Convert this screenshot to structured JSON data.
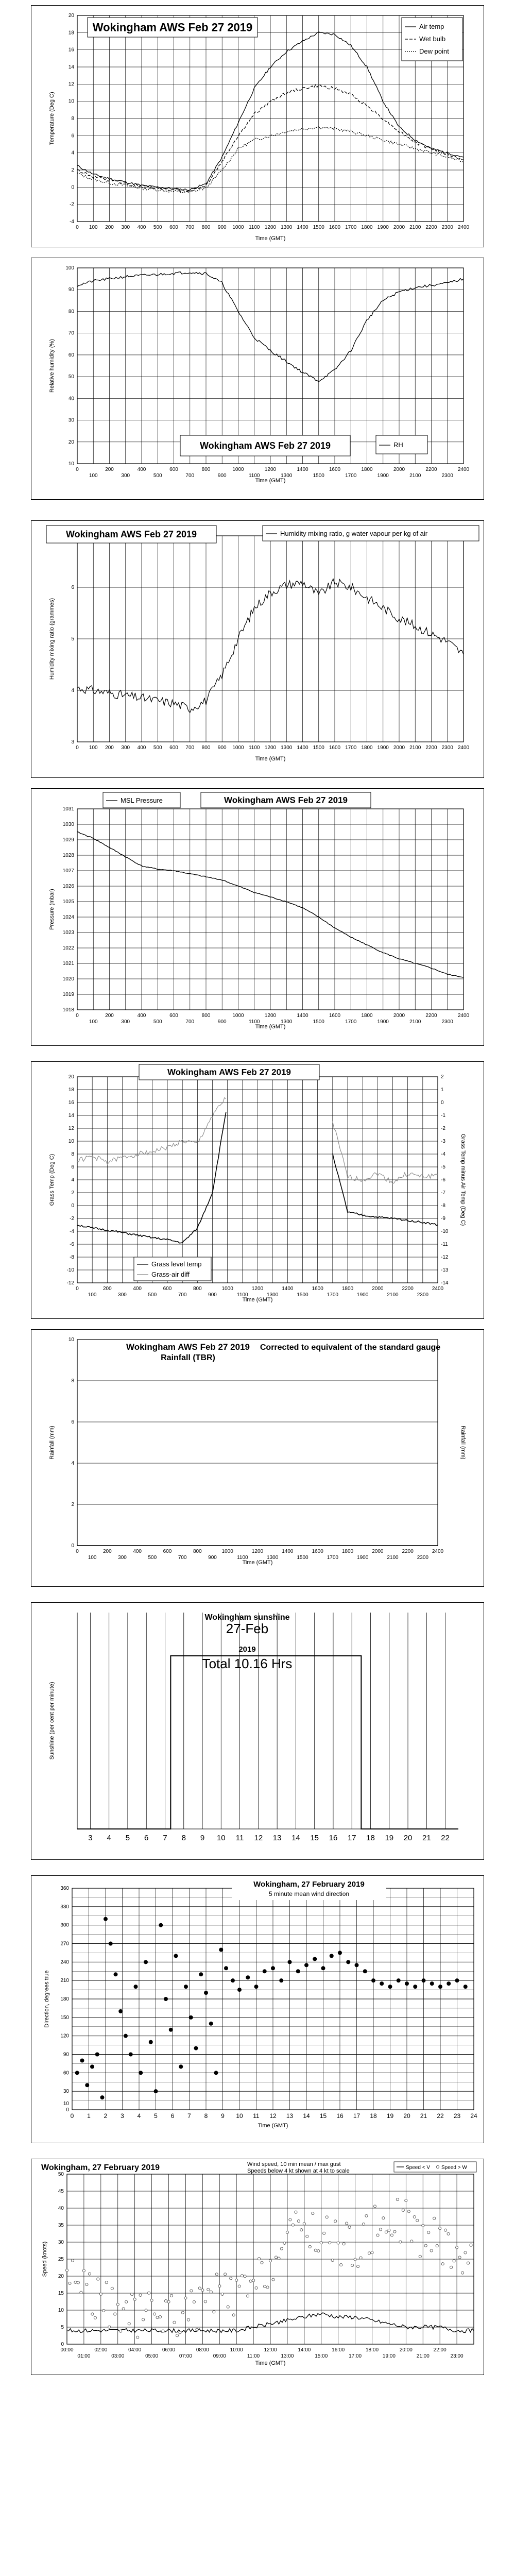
{
  "chart_data": [
    {
      "type": "line",
      "title": "Wokingham AWS Feb 27 2019",
      "ylabel": "Temperature (Deg C)",
      "xlabel": "Time (GMT)",
      "ylim": [
        -4,
        20
      ],
      "x": [
        0,
        100,
        200,
        300,
        400,
        500,
        600,
        700,
        800,
        900,
        1000,
        1100,
        1200,
        1300,
        1400,
        1500,
        1600,
        1700,
        1800,
        1900,
        2000,
        2100,
        2200,
        2300,
        2400
      ],
      "series": [
        {
          "name": "Air temp",
          "values": [
            2.5,
            1.5,
            1.0,
            0.6,
            0.2,
            0.0,
            -0.2,
            -0.3,
            0.4,
            3.5,
            7.5,
            11.5,
            14.0,
            15.8,
            17.0,
            18.0,
            17.8,
            16.5,
            14.0,
            10.0,
            7.0,
            5.5,
            4.5,
            4.0,
            3.5
          ]
        },
        {
          "name": "Wet bulb",
          "values": [
            2.0,
            1.2,
            0.8,
            0.4,
            0.1,
            -0.1,
            -0.3,
            -0.4,
            0.2,
            3.0,
            6.0,
            8.5,
            10.0,
            11.0,
            11.5,
            11.8,
            11.5,
            10.8,
            9.5,
            8.0,
            6.5,
            5.2,
            4.5,
            3.8,
            3.2
          ]
        },
        {
          "name": "Dew point",
          "values": [
            1.6,
            0.9,
            0.5,
            0.2,
            -0.1,
            -0.3,
            -0.5,
            -0.6,
            -0.1,
            2.0,
            4.5,
            5.5,
            6.0,
            6.5,
            6.8,
            7.0,
            6.8,
            6.5,
            6.0,
            5.5,
            5.0,
            4.5,
            4.0,
            3.5,
            3.0
          ]
        }
      ],
      "yticks": [
        "-4",
        "-2",
        "0",
        "2",
        "4",
        "6",
        "8",
        "10",
        "12",
        "14",
        "16",
        "18",
        "20"
      ],
      "xticks_top": [
        "0",
        "100",
        "200",
        "300",
        "400",
        "500",
        "600",
        "700",
        "800",
        "900",
        "1000",
        "1100",
        "1200",
        "1300",
        "1400",
        "1500",
        "1600",
        "1700",
        "1800",
        "1900",
        "2000",
        "2100",
        "2200",
        "2300",
        "2400"
      ]
    },
    {
      "type": "line",
      "title": "Wokingham AWS Feb 27 2019",
      "ylabel": "Relative humidity (%)",
      "xlabel": "Time (GMT)",
      "ylim": [
        10,
        100
      ],
      "x": [
        0,
        100,
        200,
        300,
        400,
        500,
        600,
        700,
        800,
        900,
        1000,
        1100,
        1200,
        1300,
        1400,
        1500,
        1600,
        1700,
        1800,
        1900,
        2000,
        2100,
        2200,
        2300,
        2400
      ],
      "series": [
        {
          "name": "RH",
          "values": [
            92,
            94,
            95,
            96,
            96.5,
            97,
            97.5,
            98,
            97.5,
            93,
            80,
            68,
            62,
            57,
            52,
            48,
            53,
            62,
            76,
            85,
            89,
            91,
            92,
            93,
            95
          ]
        }
      ],
      "yticks": [
        "10",
        "20",
        "30",
        "40",
        "50",
        "60",
        "70",
        "80",
        "90",
        "100"
      ],
      "xticks_top": [
        "0",
        "200",
        "400",
        "600",
        "800",
        "1000",
        "1200",
        "1400",
        "1600",
        "1800",
        "2000",
        "2200",
        "2400"
      ],
      "xticks_bottom": [
        "100",
        "300",
        "500",
        "700",
        "900",
        "1100",
        "1300",
        "1500",
        "1700",
        "1900",
        "2100",
        "2300"
      ]
    },
    {
      "type": "line",
      "title": "Wokingham AWS Feb 27 2019",
      "ylabel": "Humidity mixing ratio (grammes)",
      "xlabel": "Time (GMT)",
      "ylim": [
        3,
        7
      ],
      "x": [
        0,
        100,
        200,
        300,
        400,
        500,
        600,
        700,
        800,
        900,
        1000,
        1100,
        1200,
        1300,
        1400,
        1500,
        1600,
        1700,
        1800,
        1900,
        2000,
        2100,
        2200,
        2300,
        2400
      ],
      "series": [
        {
          "name": "Humidity mixing ratio, g water vapour per kg of air",
          "values": [
            4.05,
            4.0,
            3.95,
            3.9,
            3.85,
            3.8,
            3.75,
            3.65,
            3.8,
            4.3,
            5.0,
            5.6,
            5.9,
            6.05,
            6.1,
            5.85,
            6.1,
            6.0,
            5.8,
            5.6,
            5.4,
            5.25,
            5.1,
            4.95,
            4.7
          ]
        }
      ],
      "yticks": [
        "3",
        "4",
        "5",
        "6",
        "7"
      ],
      "xticks_top": [
        "0",
        "100",
        "200",
        "300",
        "400",
        "500",
        "600",
        "700",
        "800",
        "900",
        "1000",
        "1100",
        "1200",
        "1300",
        "1400",
        "1500",
        "1600",
        "1700",
        "1800",
        "1900",
        "2000",
        "2100",
        "2200",
        "2300",
        "2400"
      ]
    },
    {
      "type": "line",
      "title": "Wokingham AWS Feb 27 2019",
      "ylabel": "Pressure (mbar)",
      "xlabel": "Time (GMT)",
      "ylim": [
        1018,
        1031
      ],
      "x": [
        0,
        100,
        200,
        300,
        400,
        500,
        600,
        700,
        800,
        900,
        1000,
        1100,
        1200,
        1300,
        1400,
        1500,
        1600,
        1700,
        1800,
        1900,
        2000,
        2100,
        2200,
        2300,
        2400
      ],
      "series": [
        {
          "name": "MSL Pressure",
          "values": [
            1029.5,
            1029.1,
            1028.5,
            1027.9,
            1027.3,
            1027.1,
            1027.0,
            1026.8,
            1026.6,
            1026.4,
            1026.0,
            1025.6,
            1025.3,
            1025.0,
            1024.6,
            1024.0,
            1023.3,
            1022.7,
            1022.2,
            1021.7,
            1021.3,
            1021.0,
            1020.7,
            1020.3,
            1020.1
          ]
        }
      ],
      "yticks": [
        "1018",
        "1019",
        "1020",
        "1021",
        "1022",
        "1023",
        "1024",
        "1025",
        "1026",
        "1027",
        "1028",
        "1029",
        "1030",
        "1031"
      ],
      "xticks_top": [
        "0",
        "200",
        "400",
        "600",
        "800",
        "1000",
        "1200",
        "1400",
        "1600",
        "1800",
        "2000",
        "2200",
        "2400"
      ],
      "xticks_bottom": [
        "100",
        "300",
        "500",
        "700",
        "900",
        "1100",
        "1300",
        "1500",
        "1700",
        "1900",
        "2100",
        "2300"
      ]
    },
    {
      "type": "line",
      "title": "Wokingham AWS Feb 27 2019",
      "ylabel": "Grass Temp (Deg C)",
      "ylabel_right": "Grass Temp minus Air Temp (Deg C)",
      "xlabel": "Time (GMT)",
      "ylim": [
        -12,
        20
      ],
      "ylim_right": [
        -14,
        2
      ],
      "x": [
        0,
        100,
        200,
        300,
        400,
        500,
        600,
        700,
        800,
        900,
        1000,
        1100,
        1200,
        1300,
        1400,
        1500,
        1600,
        1700,
        1800,
        1900,
        2000,
        2100,
        2200,
        2300,
        2400
      ],
      "series": [
        {
          "name": "Grass level temp",
          "axis": "left",
          "values": [
            -3.0,
            -3.5,
            -3.8,
            -4.2,
            -4.6,
            -5.0,
            -5.3,
            -5.8,
            -3.5,
            2.0,
            16.0,
            null,
            null,
            null,
            null,
            null,
            null,
            8.0,
            -1.0,
            -1.5,
            -1.8,
            -2.0,
            -2.3,
            -2.6,
            -3.0
          ]
        },
        {
          "name": "Grass-air diff",
          "axis": "right",
          "values": [
            -4.5,
            -4.2,
            -4.6,
            -4.3,
            -4.0,
            -3.8,
            -3.5,
            -3.0,
            -3.2,
            -1.0,
            0.5,
            null,
            null,
            null,
            null,
            null,
            null,
            -1.5,
            -5.8,
            -6.0,
            -5.5,
            -6.2,
            -5.5,
            -5.8,
            -5.6
          ]
        }
      ],
      "yticks": [
        "-12",
        "-10",
        "-8",
        "-6",
        "-4",
        "-2",
        "0",
        "2",
        "4",
        "6",
        "8",
        "10",
        "12",
        "14",
        "16",
        "18",
        "20"
      ],
      "yticks_right": [
        "-14",
        "-13",
        "-12",
        "-11",
        "-10",
        "-9",
        "-8",
        "-7",
        "-6",
        "-5",
        "-4",
        "-3",
        "-2",
        "-1",
        "0",
        "1",
        "2"
      ],
      "xticks_top": [
        "0",
        "200",
        "400",
        "600",
        "800",
        "1000",
        "1200",
        "1400",
        "1600",
        "1800",
        "2000",
        "2200",
        "2400"
      ],
      "xticks_bottom": [
        "100",
        "300",
        "500",
        "700",
        "900",
        "1100",
        "1300",
        "1500",
        "1700",
        "1900",
        "2100",
        "2300"
      ]
    },
    {
      "type": "line",
      "title": "Wokingham AWS Feb 27 2019",
      "subtitle": "Rainfall (TBR)",
      "note": "Corrected to equivalent of the standard gauge",
      "ylabel": "Rainfall (mm)",
      "xlabel": "Time (GMT)",
      "ylim": [
        0,
        10
      ],
      "x": [
        0,
        2400
      ],
      "series": [
        {
          "name": "Rainfall",
          "values": [
            0,
            0
          ]
        }
      ],
      "yticks": [
        "0",
        "2",
        "4",
        "6",
        "8",
        "10"
      ],
      "xticks_top": [
        "0",
        "200",
        "400",
        "600",
        "800",
        "1000",
        "1200",
        "1400",
        "1600",
        "1800",
        "2000",
        "2200",
        "2400"
      ],
      "xticks_bottom": [
        "100",
        "300",
        "500",
        "700",
        "900",
        "1100",
        "1300",
        "1500",
        "1700",
        "1900",
        "2100",
        "2300"
      ]
    },
    {
      "type": "area",
      "title": "Wokingham sunshine",
      "date": "27-Feb",
      "year": "2019",
      "total": "Total 10.16 Hrs",
      "ylabel": "Sunshine (per cent per minute)",
      "ylim": [
        0,
        100
      ],
      "sun_start_hour": 7.3,
      "sun_end_hour": 17.5,
      "sun_level": 80,
      "xticks": [
        "3",
        "4",
        "5",
        "6",
        "7",
        "8",
        "9",
        "10",
        "11",
        "12",
        "13",
        "14",
        "15",
        "16",
        "17",
        "18",
        "19",
        "20",
        "21",
        "22"
      ]
    },
    {
      "type": "scatter",
      "title": "Wokingham, 27 February 2019",
      "subtitle": "5 minute mean wind direction",
      "ylabel": "Direction, degrees true",
      "xlabel": "Time (GMT)",
      "xlim": [
        0,
        24
      ],
      "ylim": [
        0,
        360
      ],
      "yticks": [
        "0",
        "10",
        "30",
        "60",
        "90",
        "120",
        "150",
        "180",
        "210",
        "240",
        "270",
        "300",
        "330",
        "360"
      ],
      "xticks": [
        "0",
        "1",
        "2",
        "3",
        "4",
        "5",
        "6",
        "7",
        "8",
        "9",
        "10",
        "11",
        "12",
        "13",
        "14",
        "15",
        "16",
        "17",
        "18",
        "19",
        "20",
        "21",
        "22",
        "23",
        "24"
      ],
      "points": [
        [
          0.3,
          60
        ],
        [
          0.6,
          80
        ],
        [
          0.9,
          40
        ],
        [
          1.2,
          70
        ],
        [
          1.5,
          90
        ],
        [
          1.8,
          20
        ],
        [
          2.0,
          310
        ],
        [
          2.3,
          270
        ],
        [
          2.6,
          220
        ],
        [
          2.9,
          160
        ],
        [
          3.2,
          120
        ],
        [
          3.5,
          90
        ],
        [
          3.8,
          200
        ],
        [
          4.1,
          60
        ],
        [
          4.4,
          240
        ],
        [
          4.7,
          110
        ],
        [
          5.0,
          30
        ],
        [
          5.3,
          300
        ],
        [
          5.6,
          180
        ],
        [
          5.9,
          130
        ],
        [
          6.2,
          250
        ],
        [
          6.5,
          70
        ],
        [
          6.8,
          200
        ],
        [
          7.1,
          150
        ],
        [
          7.4,
          100
        ],
        [
          7.7,
          220
        ],
        [
          8.0,
          190
        ],
        [
          8.3,
          140
        ],
        [
          8.6,
          60
        ],
        [
          8.9,
          260
        ],
        [
          9.2,
          230
        ],
        [
          9.6,
          210
        ],
        [
          10.0,
          195
        ],
        [
          10.5,
          215
        ],
        [
          11.0,
          200
        ],
        [
          11.5,
          225
        ],
        [
          12.0,
          230
        ],
        [
          12.5,
          210
        ],
        [
          13.0,
          240
        ],
        [
          13.5,
          225
        ],
        [
          14.0,
          235
        ],
        [
          14.5,
          245
        ],
        [
          15.0,
          230
        ],
        [
          15.5,
          250
        ],
        [
          16.0,
          255
        ],
        [
          16.5,
          240
        ],
        [
          17.0,
          235
        ],
        [
          17.5,
          225
        ],
        [
          18.0,
          210
        ],
        [
          18.5,
          205
        ],
        [
          19.0,
          200
        ],
        [
          19.5,
          210
        ],
        [
          20.0,
          205
        ],
        [
          20.5,
          200
        ],
        [
          21.0,
          210
        ],
        [
          21.5,
          205
        ],
        [
          22.0,
          200
        ],
        [
          22.5,
          205
        ],
        [
          23.0,
          210
        ],
        [
          23.5,
          200
        ]
      ]
    },
    {
      "type": "line",
      "title": "Wokingham,  27 February 2019",
      "subtitle": "Wind speed, 10 min mean / max gust",
      "note": "Speeds below 4 kt shown at 4 kt to scale",
      "ylabel": "Speed (knots)",
      "xlabel": "Time (GMT)",
      "ylim": [
        0,
        50
      ],
      "x": [
        0,
        100,
        200,
        300,
        400,
        500,
        600,
        700,
        800,
        900,
        1000,
        1100,
        1200,
        1300,
        1400,
        1500,
        1600,
        1700,
        1800,
        1900,
        2000,
        2100,
        2200,
        2300,
        2400
      ],
      "series": [
        {
          "name": "Speed < V",
          "values": [
            4,
            4,
            4,
            4,
            4,
            4,
            4,
            4,
            4,
            4,
            4,
            5,
            6,
            7,
            8,
            9,
            8,
            8,
            7,
            6,
            5,
            5,
            5,
            4,
            4
          ]
        },
        {
          "name": "Speed > W",
          "values": [
            22,
            18,
            12,
            10,
            8,
            9,
            10,
            8,
            12,
            15,
            14,
            16,
            24,
            30,
            35,
            32,
            30,
            28,
            33,
            38,
            36,
            32,
            30,
            28,
            24
          ]
        }
      ],
      "yticks": [
        "0",
        "5",
        "10",
        "15",
        "20",
        "25",
        "30",
        "35",
        "40",
        "45",
        "50"
      ],
      "xticks_top": [
        "00:00",
        "02:00",
        "04:00",
        "06:00",
        "08:00",
        "10:00",
        "12:00",
        "14:00",
        "16:00",
        "18:00",
        "20:00",
        "22:00"
      ],
      "xticks_bottom": [
        "01:00",
        "03:00",
        "05:00",
        "07:00",
        "09:00",
        "11:00",
        "13:00",
        "15:00",
        "17:00",
        "19:00",
        "21:00",
        "23:00"
      ]
    }
  ]
}
